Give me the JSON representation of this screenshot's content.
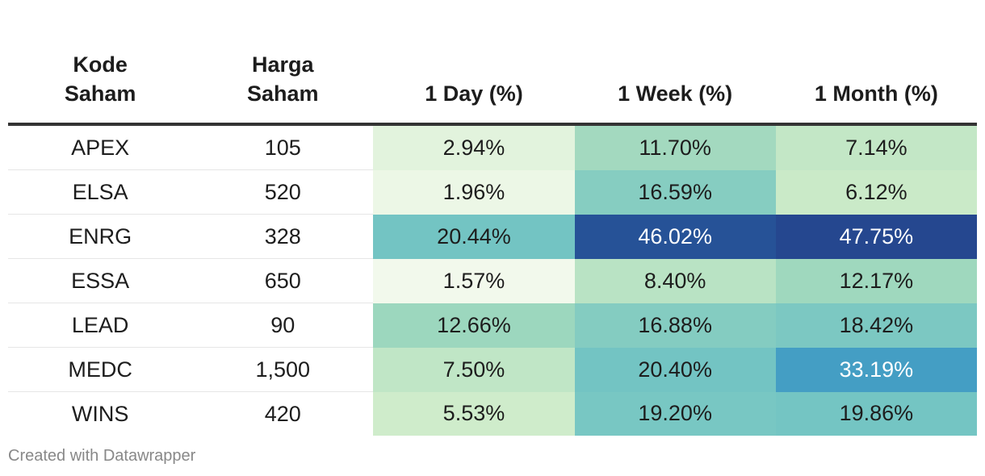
{
  "chart_data": {
    "type": "table",
    "columns": [
      {
        "key": "code",
        "label_lines": [
          "Kode",
          "Saham"
        ]
      },
      {
        "key": "price",
        "label_lines": [
          "Harga",
          "Saham"
        ]
      },
      {
        "key": "d1",
        "label_lines": [
          "1 Day (%)"
        ]
      },
      {
        "key": "w1",
        "label_lines": [
          "1 Week (%)"
        ]
      },
      {
        "key": "m1",
        "label_lines": [
          "1 Month (%)"
        ]
      }
    ],
    "rows": [
      {
        "code": "APEX",
        "price": "105",
        "d1": 2.94,
        "w1": 11.7,
        "m1": 7.14
      },
      {
        "code": "ELSA",
        "price": "520",
        "d1": 1.96,
        "w1": 16.59,
        "m1": 6.12
      },
      {
        "code": "ENRG",
        "price": "328",
        "d1": 20.44,
        "w1": 46.02,
        "m1": 47.75
      },
      {
        "code": "ESSA",
        "price": "650",
        "d1": 1.57,
        "w1": 8.4,
        "m1": 12.17
      },
      {
        "code": "LEAD",
        "price": "90",
        "d1": 12.66,
        "w1": 16.88,
        "m1": 18.42
      },
      {
        "code": "MEDC",
        "price": "1,500",
        "d1": 7.5,
        "w1": 20.4,
        "m1": 33.19
      },
      {
        "code": "WINS",
        "price": "420",
        "d1": 5.53,
        "w1": 19.2,
        "m1": 19.86
      }
    ],
    "heatmap_colors": {
      "scale": [
        "#f2f9ec",
        "#cdebc9",
        "#9fd8be",
        "#74c5c3",
        "#5eb7c9",
        "#2b86bf",
        "#25478f"
      ],
      "dark_text_threshold": 30,
      "dark_text_color": "#ffffff",
      "light_text_color": "#1d1d1d"
    }
  },
  "footer": {
    "credit": "Created with Datawrapper"
  }
}
